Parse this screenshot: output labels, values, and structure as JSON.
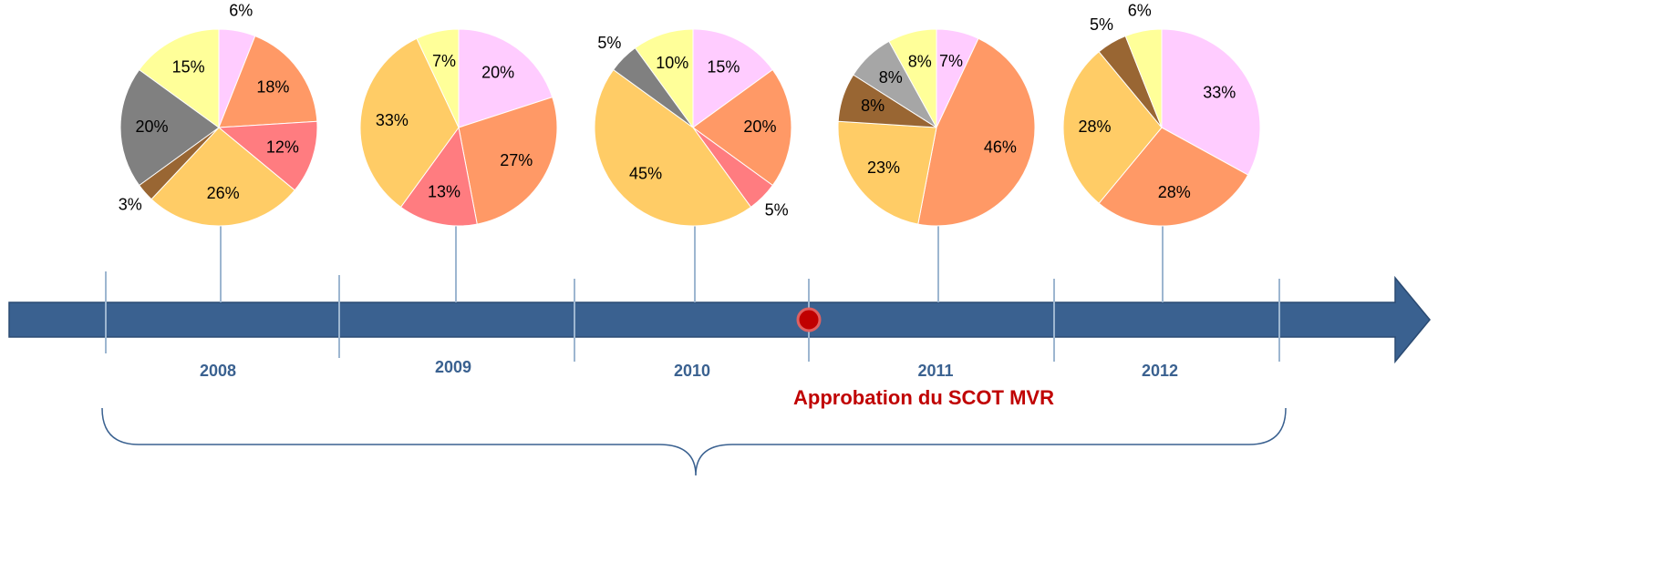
{
  "chart_data": [
    {
      "type": "pie",
      "title": "2008",
      "values": [
        6,
        18,
        12,
        26,
        3,
        20,
        15
      ],
      "value_labels": [
        "6%",
        "18%",
        "12%",
        "26%",
        "3%",
        "20%",
        "15%"
      ],
      "colors": [
        "#FFCCFF",
        "#FF9966",
        "#FF7C80",
        "#FFCC66",
        "#996633",
        "#808080",
        "#FFFF99"
      ]
    },
    {
      "type": "pie",
      "title": "2009",
      "values": [
        20,
        27,
        13,
        33,
        7
      ],
      "value_labels": [
        "20%",
        "27%",
        "13%",
        "33%",
        "7%"
      ],
      "colors": [
        "#FFCCFF",
        "#FF9966",
        "#FF7C80",
        "#FFCC66",
        "#FFFF99"
      ]
    },
    {
      "type": "pie",
      "title": "2010",
      "values": [
        15,
        20,
        5,
        45,
        5,
        10
      ],
      "value_labels": [
        "15%",
        "20%",
        "5%",
        "45%",
        "5%",
        "10%"
      ],
      "colors": [
        "#FFCCFF",
        "#FF9966",
        "#FF7C80",
        "#FFCC66",
        "#808080",
        "#FFFF99"
      ]
    },
    {
      "type": "pie",
      "title": "2011",
      "values": [
        7,
        46,
        23,
        8,
        8,
        8
      ],
      "value_labels": [
        "7%",
        "46%",
        "23%",
        "8%",
        "8%",
        "8%"
      ],
      "colors": [
        "#FFCCFF",
        "#FF9966",
        "#FFCC66",
        "#996633",
        "#A6A6A6",
        "#FFFF99"
      ]
    },
    {
      "type": "pie",
      "title": "2012",
      "values": [
        33,
        28,
        28,
        5,
        6
      ],
      "value_labels": [
        "33%",
        "28%",
        "28%",
        "5%",
        "6%"
      ],
      "colors": [
        "#FFCCFF",
        "#FF9966",
        "#FFCC66",
        "#996633",
        "#FFFF99"
      ]
    }
  ],
  "annotation": "Approbation du SCOT MVR"
}
